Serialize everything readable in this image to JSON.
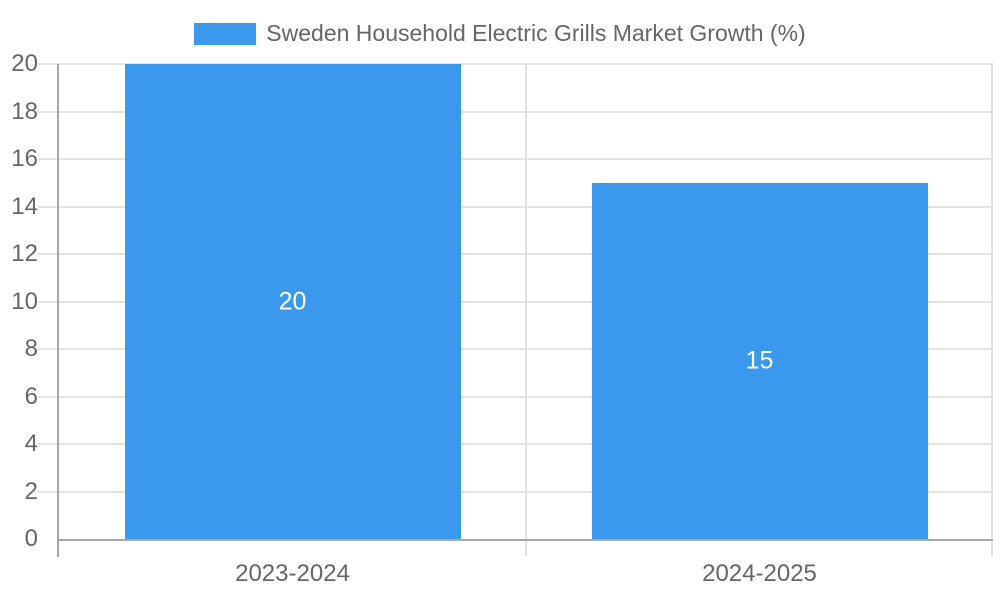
{
  "legend": {
    "label": "Sweden Household Electric Grills Market Growth (%)"
  },
  "chart_data": {
    "type": "bar",
    "title": "Sweden Household Electric Grills Market Growth (%)",
    "categories": [
      "2023-2024",
      "2024-2025"
    ],
    "values": [
      20,
      15
    ],
    "data_labels": [
      "20",
      "15"
    ],
    "xlabel": "",
    "ylabel": "",
    "ylim": [
      0,
      20
    ],
    "ytick_step": 2,
    "y_ticks": [
      0,
      2,
      4,
      6,
      8,
      10,
      12,
      14,
      16,
      18,
      20
    ],
    "grid": true,
    "legend_position": "top-center",
    "colors": {
      "bar": "#3a99ec",
      "axis_text": "#666666",
      "axis_line": "#a7a7a7",
      "gridline": "#e3e3e3",
      "data_label": "#ffffff",
      "background": "#ffffff"
    }
  }
}
